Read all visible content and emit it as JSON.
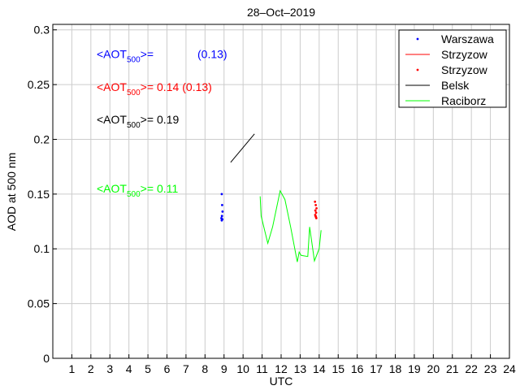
{
  "chart_data": {
    "type": "line",
    "title": "28–Oct–2019",
    "xlabel": "UTC",
    "ylabel": "AOD at 500 nm",
    "xlim": [
      0,
      24
    ],
    "ylim": [
      0,
      0.305
    ],
    "x_ticks": [
      1,
      2,
      3,
      4,
      5,
      6,
      7,
      8,
      9,
      10,
      11,
      12,
      13,
      14,
      15,
      16,
      17,
      18,
      19,
      20,
      21,
      22,
      23,
      24
    ],
    "y_ticks": [
      0,
      0.05,
      0.1,
      0.15,
      0.2,
      0.25,
      0.3
    ],
    "y_tick_labels": [
      "0",
      "0.05",
      "0.1",
      "0.15",
      "0.2",
      "0.25",
      "0.3"
    ],
    "grid": true,
    "legend_position": "top-right",
    "colors": {
      "warszawa": "#0000ff",
      "strzyzow": "#ff0000",
      "belsk": "#000000",
      "raciborz": "#00ff00"
    },
    "series": [
      {
        "name": "Warszawa",
        "style": "points",
        "color": "#0000ff",
        "points": [
          [
            8.88,
            0.15
          ],
          [
            8.9,
            0.14
          ],
          [
            8.92,
            0.134
          ],
          [
            8.89,
            0.13
          ],
          [
            8.86,
            0.128
          ],
          [
            8.88,
            0.126
          ],
          [
            8.91,
            0.127
          ]
        ]
      },
      {
        "name": "Strzyzow",
        "style": "line",
        "color": "#ff0000",
        "points": []
      },
      {
        "name": "Strzyzow",
        "style": "points",
        "color": "#ff0000",
        "points": [
          [
            13.78,
            0.143
          ],
          [
            13.82,
            0.14
          ],
          [
            13.86,
            0.137
          ],
          [
            13.8,
            0.135
          ],
          [
            13.84,
            0.133
          ],
          [
            13.79,
            0.131
          ],
          [
            13.83,
            0.129
          ],
          [
            13.81,
            0.13
          ],
          [
            13.85,
            0.128
          ]
        ]
      },
      {
        "name": "Belsk",
        "style": "line",
        "color": "#000000",
        "points": [
          [
            9.35,
            0.179
          ],
          [
            10.6,
            0.205
          ]
        ]
      },
      {
        "name": "Raciborz",
        "style": "line",
        "color": "#00ff00",
        "points": [
          [
            10.9,
            0.148
          ],
          [
            10.95,
            0.13
          ],
          [
            11.3,
            0.105
          ],
          [
            11.55,
            0.12
          ],
          [
            11.95,
            0.153
          ],
          [
            12.2,
            0.145
          ],
          [
            12.5,
            0.12
          ],
          [
            12.85,
            0.088
          ],
          [
            12.95,
            0.097
          ],
          [
            13.05,
            0.094
          ],
          [
            13.4,
            0.093
          ],
          [
            13.5,
            0.12
          ],
          [
            13.75,
            0.089
          ],
          [
            14.0,
            0.1
          ],
          [
            14.1,
            0.117
          ]
        ]
      }
    ],
    "annotations": [
      {
        "base": "<AOT",
        "sub": "500",
        "rest": ">=",
        "value_a": "",
        "value_b": "(0.13)",
        "color": "#0000ff",
        "second_color": "#0000ff",
        "y_value": 0.278
      },
      {
        "base": "<AOT",
        "sub": "500",
        "rest": ">=",
        "value_a": "0.14",
        "value_b": "(0.13)",
        "color": "#ff0000",
        "second_color": "#ff0000",
        "y_value": 0.248
      },
      {
        "base": "<AOT",
        "sub": "500",
        "rest": ">=",
        "value_a": "0.19",
        "value_b": "",
        "color": "#000000",
        "second_color": "#000000",
        "y_value": 0.218
      },
      {
        "base": "<AOT",
        "sub": "500",
        "rest": ">=",
        "value_a": "0.11",
        "value_b": "",
        "color": "#00ff00",
        "second_color": "#00ff00",
        "y_value": 0.155
      }
    ]
  }
}
